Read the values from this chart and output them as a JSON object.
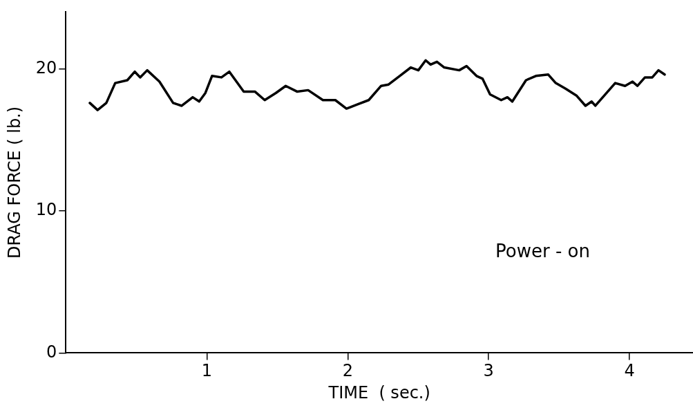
{
  "chart_data": {
    "type": "line",
    "xlabel": "TIME  ( sec.)",
    "ylabel": "DRAG FORCE ( lb.)",
    "annotations": [
      "Power - on"
    ],
    "x": [
      0.17,
      0.225,
      0.287,
      0.35,
      0.436,
      0.489,
      0.527,
      0.577,
      0.664,
      0.761,
      0.822,
      0.9,
      0.946,
      0.99,
      1.037,
      1.104,
      1.16,
      1.262,
      1.341,
      1.411,
      1.49,
      1.56,
      1.64,
      1.719,
      1.824,
      1.912,
      1.991,
      2.07,
      2.149,
      2.237,
      2.29,
      2.369,
      2.448,
      2.501,
      2.553,
      2.588,
      2.633,
      2.685,
      2.791,
      2.843,
      2.914,
      2.957,
      3.01,
      3.089,
      3.133,
      3.168,
      3.265,
      3.335,
      3.423,
      3.476,
      3.546,
      3.625,
      3.687,
      3.731,
      3.757,
      3.827,
      3.898,
      3.968,
      4.021,
      4.056,
      4.109,
      4.161,
      4.205,
      4.249
    ],
    "series": [
      {
        "color": "#000000",
        "values": [
          17.6,
          17.1,
          17.6,
          19.0,
          19.2,
          19.8,
          19.4,
          19.9,
          19.1,
          17.6,
          17.4,
          18.0,
          17.7,
          18.3,
          19.5,
          19.4,
          19.8,
          18.4,
          18.4,
          17.8,
          18.3,
          18.8,
          18.4,
          18.5,
          17.8,
          17.8,
          17.2,
          17.5,
          17.8,
          18.8,
          18.9,
          19.5,
          20.1,
          19.9,
          20.6,
          20.3,
          20.5,
          20.1,
          19.9,
          20.2,
          19.5,
          19.3,
          18.2,
          17.8,
          18.0,
          17.7,
          19.2,
          19.5,
          19.6,
          19.0,
          18.6,
          18.1,
          17.4,
          17.7,
          17.4,
          18.2,
          19.0,
          18.8,
          19.1,
          18.8,
          19.4,
          19.4,
          19.9,
          19.6
        ]
      }
    ],
    "xlim": [
      0,
      4.45
    ],
    "ylim": [
      0,
      24
    ],
    "xticks": [
      1,
      2,
      3,
      4
    ],
    "yticks": [
      0,
      10,
      20
    ],
    "grid": false,
    "legend": false,
    "marker": "none",
    "line_style": "solid"
  }
}
